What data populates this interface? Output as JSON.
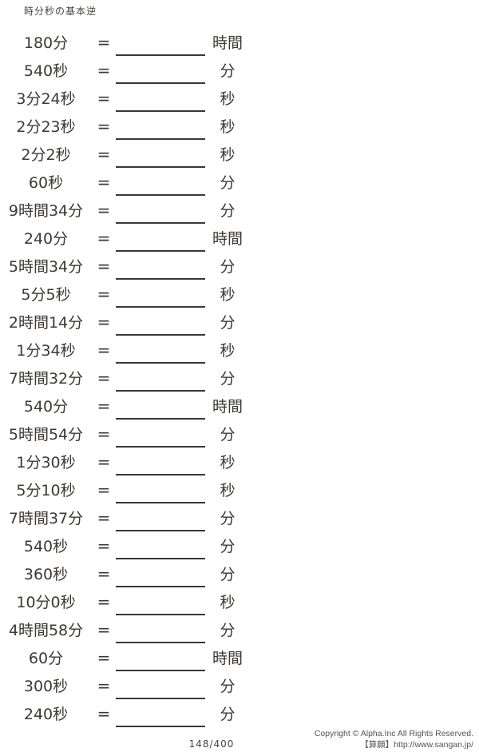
{
  "page": {
    "title": "時分秒の基本逆",
    "page_number": "148/400"
  },
  "ui": {
    "equals_sign": "="
  },
  "problems": [
    {
      "question": "180分",
      "unit": "時間"
    },
    {
      "question": "540秒",
      "unit": "分"
    },
    {
      "question": "3分24秒",
      "unit": "秒"
    },
    {
      "question": "2分23秒",
      "unit": "秒"
    },
    {
      "question": "2分2秒",
      "unit": "秒"
    },
    {
      "question": "60秒",
      "unit": "分"
    },
    {
      "question": "9時間34分",
      "unit": "分"
    },
    {
      "question": "240分",
      "unit": "時間"
    },
    {
      "question": "5時間34分",
      "unit": "分"
    },
    {
      "question": "5分5秒",
      "unit": "秒"
    },
    {
      "question": "2時間14分",
      "unit": "分"
    },
    {
      "question": "1分34秒",
      "unit": "秒"
    },
    {
      "question": "7時間32分",
      "unit": "分"
    },
    {
      "question": "540分",
      "unit": "時間"
    },
    {
      "question": "5時間54分",
      "unit": "分"
    },
    {
      "question": "1分30秒",
      "unit": "秒"
    },
    {
      "question": "5分10秒",
      "unit": "秒"
    },
    {
      "question": "7時間37分",
      "unit": "分"
    },
    {
      "question": "540秒",
      "unit": "分"
    },
    {
      "question": "360秒",
      "unit": "分"
    },
    {
      "question": "10分0秒",
      "unit": "秒"
    },
    {
      "question": "4時間58分",
      "unit": "分"
    },
    {
      "question": "60分",
      "unit": "時間"
    },
    {
      "question": "300秒",
      "unit": "分"
    },
    {
      "question": "240秒",
      "unit": "分"
    }
  ],
  "footer": {
    "copyright": "Copyright ©  Alpha.Inc  All  Rights  Reserved.",
    "site": "【算願】http://www.sangan.jp/"
  },
  "colors": {
    "ink": "#3d3835",
    "blank_line": "#3b3734",
    "footer_text": "#575350"
  }
}
